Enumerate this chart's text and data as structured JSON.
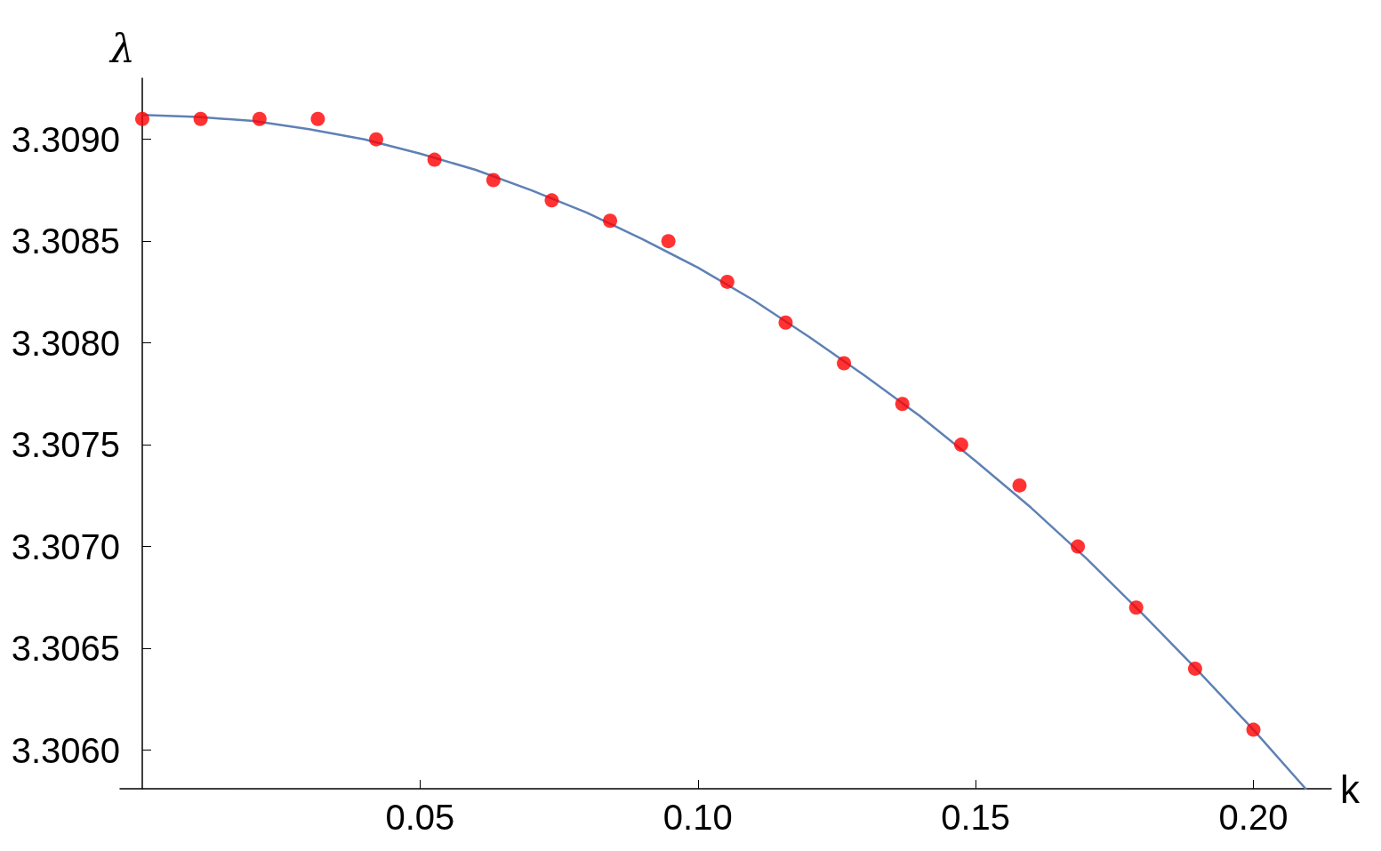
{
  "chart_data": {
    "type": "scatter",
    "xlabel": "k",
    "ylabel": "λ",
    "xlim": [
      -0.004,
      0.214
    ],
    "ylim": [
      3.30581,
      3.3093
    ],
    "xticks": [
      {
        "value": 0.05,
        "label": "0.05"
      },
      {
        "value": 0.1,
        "label": "0.10"
      },
      {
        "value": 0.15,
        "label": "0.15"
      },
      {
        "value": 0.2,
        "label": "0.20"
      }
    ],
    "yticks": [
      {
        "value": 3.306,
        "label": "3.3060"
      },
      {
        "value": 3.3065,
        "label": "3.3065"
      },
      {
        "value": 3.307,
        "label": "3.3070"
      },
      {
        "value": 3.3075,
        "label": "3.3075"
      },
      {
        "value": 3.308,
        "label": "3.3080"
      },
      {
        "value": 3.3085,
        "label": "3.3085"
      },
      {
        "value": 3.309,
        "label": "3.3090"
      }
    ],
    "grid": false,
    "series": [
      {
        "type": "line",
        "color": "#5e81b5",
        "marker": "none",
        "line_style": "solid",
        "x": [
          0,
          0.01,
          0.02,
          0.03,
          0.04,
          0.05,
          0.06,
          0.07,
          0.08,
          0.09,
          0.1,
          0.11,
          0.12,
          0.13,
          0.14,
          0.15,
          0.16,
          0.17,
          0.18,
          0.19,
          0.2,
          0.2094
        ],
        "values": [
          3.30912,
          3.30911,
          3.30909,
          3.30905,
          3.309,
          3.30893,
          3.30885,
          3.30875,
          3.30864,
          3.30851,
          3.30837,
          3.30821,
          3.30803,
          3.30784,
          3.30764,
          3.30742,
          3.30719,
          3.30694,
          3.30667,
          3.30639,
          3.3061,
          3.30581
        ]
      },
      {
        "color": "#ff0000",
        "marker": "circle",
        "x": [
          0,
          0.0105,
          0.0211,
          0.0316,
          0.0421,
          0.0526,
          0.0632,
          0.0737,
          0.0842,
          0.0947,
          0.1053,
          0.1158,
          0.1263,
          0.1368,
          0.1474,
          0.1579,
          0.1684,
          0.1789,
          0.1895,
          0.2
        ],
        "values": [
          3.3091,
          3.3091,
          3.3091,
          3.3091,
          3.309,
          3.3089,
          3.3088,
          3.3087,
          3.3086,
          3.3085,
          3.3083,
          3.3081,
          3.3079,
          3.3077,
          3.3075,
          3.3073,
          3.307,
          3.3067,
          3.3064,
          3.3061
        ]
      }
    ]
  }
}
